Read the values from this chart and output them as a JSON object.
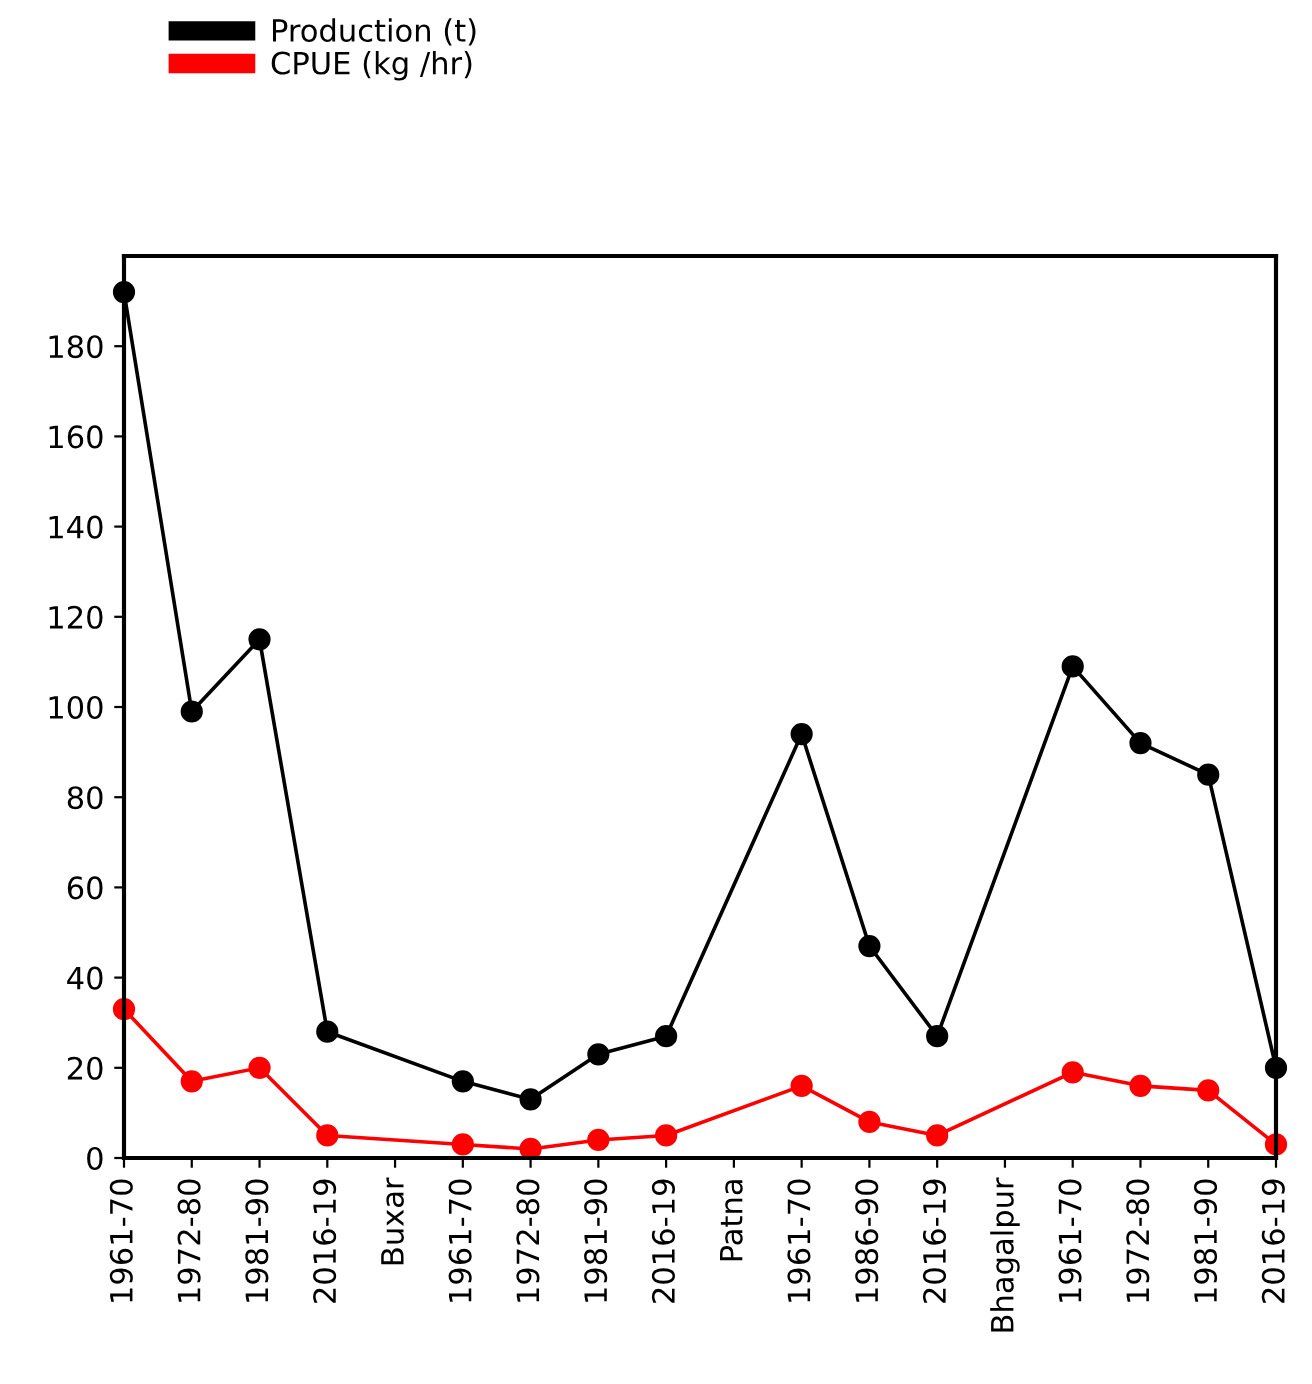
{
  "chart_data": {
    "type": "line",
    "categories": [
      "1961-70",
      "1972-80",
      "1981-90",
      "2016-19",
      "Buxar",
      "1961-70",
      "1972-80",
      "1981-90",
      "2016-19",
      "Patna",
      "1961-70",
      "1986-90",
      "2016-19",
      "Bhagalpur",
      "1961-70",
      "1972-80",
      "1981-90",
      "2016-19"
    ],
    "series": [
      {
        "name": "Production (t)",
        "color": "#000000",
        "values": [
          192,
          99,
          115,
          28,
          null,
          17,
          13,
          23,
          27,
          null,
          94,
          47,
          27,
          null,
          109,
          92,
          85,
          20
        ]
      },
      {
        "name": "CPUE (kg /hr)",
        "color": "#ff0000",
        "values": [
          33,
          17,
          20,
          5,
          null,
          3,
          2,
          4,
          5,
          null,
          16,
          8,
          5,
          null,
          19,
          16,
          15,
          3
        ]
      }
    ],
    "ylim": [
      0,
      200
    ],
    "yticks": [
      0,
      20,
      40,
      60,
      80,
      100,
      120,
      140,
      160,
      180
    ],
    "grid": false,
    "legend": "top left",
    "marker": "circle",
    "line_style": "solid"
  }
}
